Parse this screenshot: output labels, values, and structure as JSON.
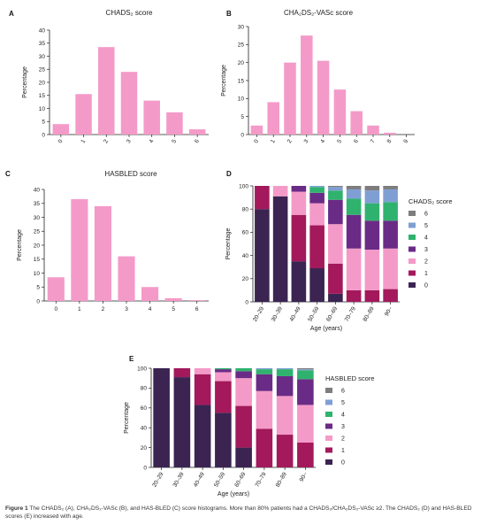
{
  "caption": {
    "lead": "Figure 1",
    "text": "The CHADS₂ (A), CHA₂DS₂-VASc (B), and HAS-BLED (C) score histograms. More than 80% patients had a CHADS₂/CHA₂DS₂-VASc ≥2. The CHADS₂ (D) and HAS-BLED scores (E) increased with age."
  },
  "colors": {
    "bar_pink": "#f49ac8",
    "stack": {
      "0": "#3b2452",
      "1": "#a3195b",
      "2": "#f49ac8",
      "3": "#6a2b86",
      "4": "#2fb26e",
      "5": "#7f9fd4",
      "6": "#7d7d7d"
    }
  },
  "chart_data": [
    {
      "panel": "A",
      "type": "bar",
      "title": "CHADS₂ score",
      "ylabel": "Percentage",
      "xlabel": "",
      "categories": [
        "0",
        "1",
        "2",
        "3",
        "4",
        "5",
        "6"
      ],
      "values": [
        4,
        15.5,
        33.5,
        24,
        13,
        8.5,
        2
      ],
      "ylim": [
        0,
        40
      ],
      "yticks": [
        0,
        5,
        10,
        15,
        20,
        25,
        30,
        35,
        40
      ]
    },
    {
      "panel": "B",
      "type": "bar",
      "title": "CHA₂DS₂-VASc score",
      "ylabel": "Percentage",
      "xlabel": "",
      "categories": [
        "0",
        "1",
        "2",
        "3",
        "4",
        "5",
        "6",
        "7",
        "8",
        "9"
      ],
      "values": [
        2.5,
        9,
        20,
        27.5,
        20.5,
        12.5,
        6.5,
        2.5,
        0.5,
        0
      ],
      "ylim": [
        0,
        30
      ],
      "yticks": [
        0,
        5,
        10,
        15,
        20,
        25,
        30
      ]
    },
    {
      "panel": "C",
      "type": "bar",
      "title": "HASBLED score",
      "ylabel": "Percentage",
      "xlabel": "",
      "categories": [
        "0",
        "1",
        "2",
        "3",
        "4",
        "5",
        "6"
      ],
      "values": [
        8.5,
        36.5,
        34,
        16,
        5,
        1,
        0.3
      ],
      "ylim": [
        0,
        40
      ],
      "yticks": [
        0,
        5,
        10,
        15,
        20,
        25,
        30,
        35,
        40
      ]
    },
    {
      "panel": "D",
      "type": "bar",
      "stacked": true,
      "title": "",
      "ylabel": "Percentage",
      "xlabel": "Age (years)",
      "legend_title": "CHADS₂ score",
      "legend_position": "right",
      "categories": [
        "20–29",
        "30–39",
        "40–49",
        "50–59",
        "60–69",
        "70–79",
        "80–89",
        "90–"
      ],
      "ylim": [
        0,
        100
      ],
      "yticks": [
        0,
        20,
        40,
        60,
        80,
        100
      ],
      "series": [
        {
          "name": "0",
          "values": [
            80,
            91,
            35,
            29,
            7,
            0,
            0,
            0
          ]
        },
        {
          "name": "1",
          "values": [
            20,
            0,
            40,
            37,
            26,
            10,
            10,
            11
          ]
        },
        {
          "name": "2",
          "values": [
            0,
            9,
            20,
            19,
            34,
            36,
            35,
            35
          ]
        },
        {
          "name": "3",
          "values": [
            0,
            0,
            5,
            9,
            21,
            29,
            25,
            24
          ]
        },
        {
          "name": "4",
          "values": [
            0,
            0,
            0,
            5,
            8,
            14,
            15,
            16
          ]
        },
        {
          "name": "5",
          "values": [
            0,
            0,
            0,
            1,
            3,
            8,
            11,
            11
          ]
        },
        {
          "name": "6",
          "values": [
            0,
            0,
            0,
            0,
            1,
            3,
            4,
            3
          ]
        }
      ]
    },
    {
      "panel": "E",
      "type": "bar",
      "stacked": true,
      "title": "",
      "ylabel": "Percentage",
      "xlabel": "Age (years)",
      "legend_title": "HASBLED score",
      "legend_position": "right",
      "categories": [
        "20–29",
        "30–39",
        "40–49",
        "50–59",
        "60–69",
        "70–79",
        "80–89",
        "90–"
      ],
      "ylim": [
        0,
        100
      ],
      "yticks": [
        0,
        20,
        40,
        60,
        80,
        100
      ],
      "series": [
        {
          "name": "0",
          "values": [
            100,
            91,
            63,
            55,
            20,
            0,
            0,
            0
          ]
        },
        {
          "name": "1",
          "values": [
            0,
            9,
            31,
            32,
            42,
            39,
            33,
            25
          ]
        },
        {
          "name": "2",
          "values": [
            0,
            0,
            6,
            9,
            28,
            38,
            39,
            38
          ]
        },
        {
          "name": "3",
          "values": [
            0,
            0,
            0,
            3,
            7,
            17,
            20,
            26
          ]
        },
        {
          "name": "4",
          "values": [
            0,
            0,
            0,
            1,
            3,
            5,
            7,
            9
          ]
        },
        {
          "name": "5",
          "values": [
            0,
            0,
            0,
            0,
            0,
            1,
            1,
            1
          ]
        },
        {
          "name": "6",
          "values": [
            0,
            0,
            0,
            0,
            0,
            0,
            0,
            1
          ]
        }
      ]
    }
  ]
}
